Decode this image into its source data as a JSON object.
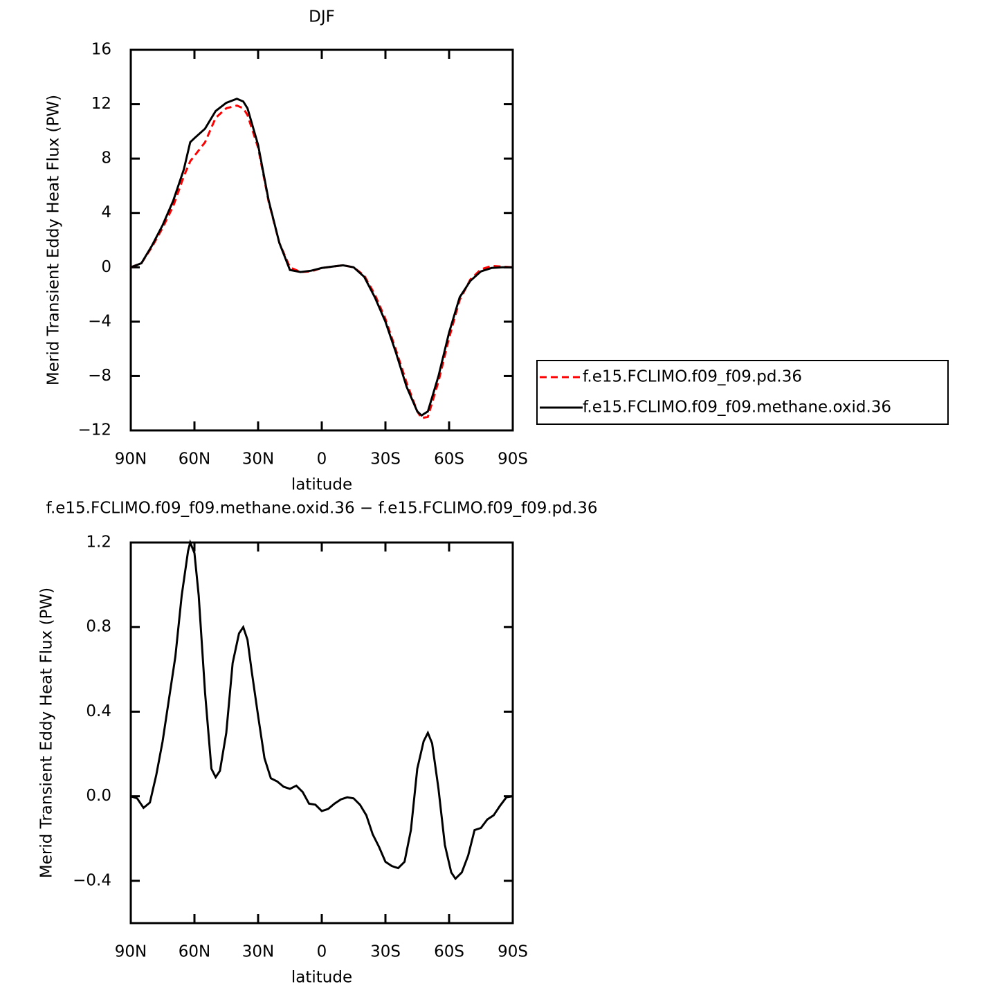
{
  "chart_data": [
    {
      "type": "line",
      "title": "DJF",
      "xlabel": "latitude",
      "ylabel": "Merid Transient Eddy Heat Flux (PW)",
      "x": [
        90,
        85,
        80,
        75,
        70,
        65,
        62,
        60,
        55,
        50,
        45,
        40,
        37,
        35,
        30,
        25,
        20,
        15,
        10,
        5,
        0,
        -5,
        -10,
        -15,
        -20,
        -25,
        -30,
        -35,
        -40,
        -45,
        -47,
        -50,
        -55,
        -60,
        -65,
        -70,
        -75,
        -80,
        -85,
        -90
      ],
      "series": [
        {
          "name": "f.e15.FCLIMO.f09_f09.pd.36",
          "color": "#ff0000",
          "line_style": "dashed",
          "values": [
            0,
            0.3,
            1.5,
            2.9,
            4.5,
            6.7,
            7.8,
            8.2,
            9.2,
            11.0,
            11.7,
            11.9,
            11.7,
            11.2,
            8.8,
            4.8,
            1.8,
            0,
            -0.35,
            -0.3,
            -0.05,
            0.05,
            0.15,
            0,
            -0.6,
            -2.0,
            -3.8,
            -6.1,
            -8.5,
            -10.6,
            -11.1,
            -11.0,
            -8.4,
            -5.2,
            -2.4,
            -0.9,
            -0.15,
            0.1,
            0.05,
            0
          ]
        },
        {
          "name": "f.e15.FCLIMO.f09_f09.methane.oxid.36",
          "color": "#000000",
          "line_style": "solid",
          "values": [
            0,
            0.3,
            1.6,
            3.1,
            4.9,
            7.2,
            9.2,
            9.5,
            10.2,
            11.5,
            12.1,
            12.4,
            12.2,
            11.7,
            9.0,
            4.9,
            1.8,
            -0.2,
            -0.35,
            -0.25,
            -0.05,
            0.05,
            0.15,
            0,
            -0.7,
            -2.2,
            -4.0,
            -6.3,
            -8.8,
            -10.6,
            -10.9,
            -10.6,
            -8.0,
            -4.8,
            -2.2,
            -1.0,
            -0.3,
            -0.05,
            0,
            0
          ]
        }
      ],
      "xlim": [
        90,
        -90
      ],
      "xticks": [
        {
          "value": 90,
          "label": "90N"
        },
        {
          "value": 60,
          "label": "60N"
        },
        {
          "value": 30,
          "label": "30N"
        },
        0,
        {
          "value": -30,
          "label": "30S"
        },
        {
          "value": -60,
          "label": "60S"
        },
        {
          "value": -90,
          "label": "90S"
        }
      ],
      "ylim": [
        -12,
        16
      ],
      "yticks": [
        {
          "value": -12,
          "label": "−12"
        },
        {
          "value": -8,
          "label": "−8"
        },
        {
          "value": -4,
          "label": "−4"
        },
        0,
        4,
        8,
        12,
        16
      ],
      "legend": "right"
    },
    {
      "type": "line",
      "title": "f.e15.FCLIMO.f09_f09.methane.oxid.36 − f.e15.FCLIMO.f09_f09.pd.36",
      "xlabel": "latitude",
      "ylabel": "Merid Transient Eddy Heat Flux (PW)",
      "x": [
        90,
        87,
        84,
        81,
        78,
        75,
        72,
        69,
        66,
        63,
        62,
        60,
        58,
        55,
        52,
        50,
        48,
        45,
        42,
        39,
        37,
        35,
        33,
        30,
        27,
        24,
        21,
        18,
        15,
        12,
        9,
        6,
        3,
        0,
        -3,
        -6,
        -9,
        -12,
        -15,
        -18,
        -21,
        -24,
        -27,
        -30,
        -33,
        -36,
        -39,
        -42,
        -45,
        -48,
        -50,
        -52,
        -55,
        -58,
        -61,
        -63,
        -66,
        -69,
        -72,
        -75,
        -78,
        -81,
        -84,
        -87,
        -90
      ],
      "series": [
        {
          "color": "#000000",
          "line_style": "solid",
          "values": [
            0,
            -0.01,
            -0.055,
            -0.03,
            0.1,
            0.26,
            0.46,
            0.66,
            0.95,
            1.16,
            1.2,
            1.15,
            0.95,
            0.49,
            0.13,
            0.09,
            0.12,
            0.3,
            0.63,
            0.77,
            0.8,
            0.74,
            0.59,
            0.38,
            0.18,
            0.085,
            0.07,
            0.045,
            0.035,
            0.05,
            0.02,
            -0.035,
            -0.04,
            -0.07,
            -0.06,
            -0.035,
            -0.015,
            -0.005,
            -0.01,
            -0.04,
            -0.09,
            -0.18,
            -0.24,
            -0.31,
            -0.33,
            -0.34,
            -0.31,
            -0.16,
            0.13,
            0.26,
            0.3,
            0.25,
            0.035,
            -0.23,
            -0.36,
            -0.39,
            -0.36,
            -0.28,
            -0.16,
            -0.15,
            -0.11,
            -0.09,
            -0.045,
            -0.005,
            0
          ]
        }
      ],
      "xlim": [
        90,
        -90
      ],
      "xticks": [
        {
          "value": 90,
          "label": "90N"
        },
        {
          "value": 60,
          "label": "60N"
        },
        {
          "value": 30,
          "label": "30N"
        },
        0,
        {
          "value": -30,
          "label": "30S"
        },
        {
          "value": -60,
          "label": "60S"
        },
        {
          "value": -90,
          "label": "90S"
        }
      ],
      "ylim": [
        -0.6,
        1.2
      ],
      "yticks": [
        {
          "value": -0.4,
          "label": "−0.4"
        },
        {
          "value": 0,
          "label": "0.0"
        },
        0.4,
        0.8,
        1.2
      ]
    }
  ]
}
